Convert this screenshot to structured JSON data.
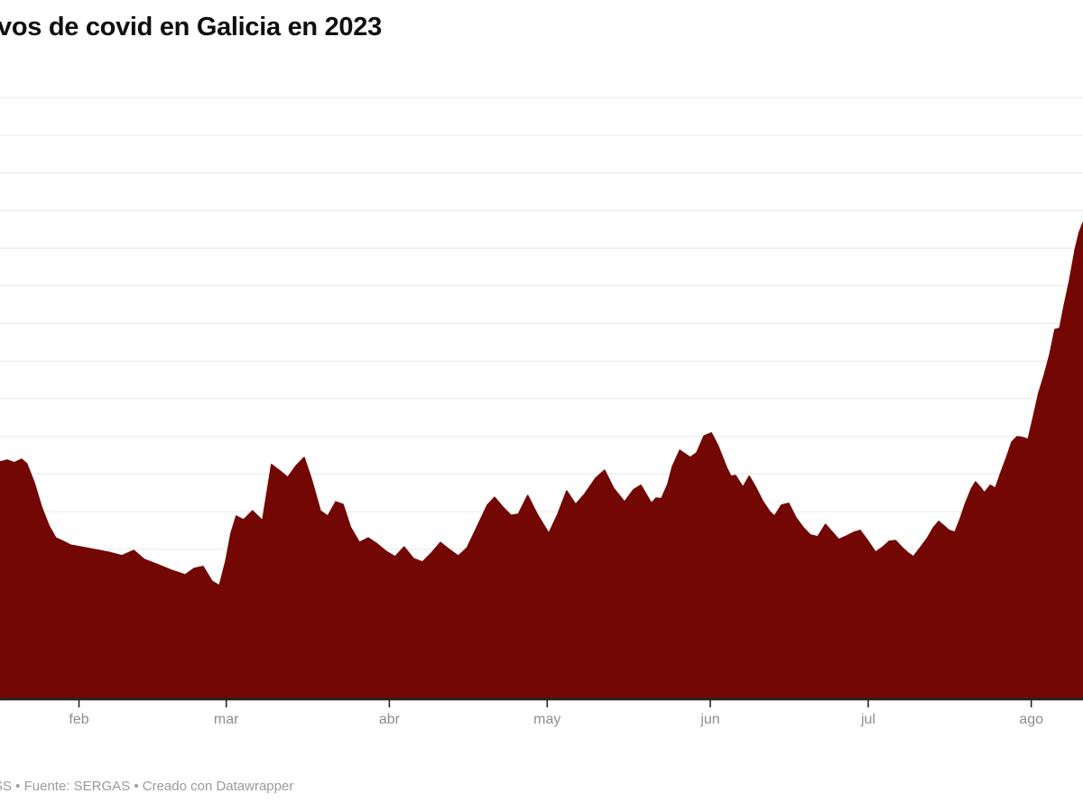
{
  "header": {
    "title_visible_text": "vos de covid en Galicia en 2023"
  },
  "footer": {
    "visible_text": "SS • Fuente: SERGAS • Creado con Datawrapper"
  },
  "colors": {
    "background": "#ffffff",
    "title_text": "#0f0f0f",
    "footer_text": "#9b9b9b",
    "axis_label_text": "#8e8e8e",
    "gridline": "#e8e8e8",
    "baseline": "#242424",
    "tick": "#242424",
    "area_fill": "#730703"
  },
  "chart_data": {
    "type": "area",
    "title": "vos de covid en Galicia en 2023",
    "legend": "none",
    "grid": "horizontal gridlines on, unlabeled (left value labels cropped out of view)",
    "x_axis": {
      "kind": "date",
      "visible_range_days": [
        0,
        205.8
      ],
      "left_edge_date": "2023-01-17",
      "right_edge_date": "2023-08-11",
      "ticks": [
        {
          "label": "feb",
          "day": 15
        },
        {
          "label": "mar",
          "day": 43
        },
        {
          "label": "abr",
          "day": 74
        },
        {
          "label": "may",
          "day": 104
        },
        {
          "label": "jun",
          "day": 135
        },
        {
          "label": "jul",
          "day": 165
        },
        {
          "label": "ago",
          "day": 196
        }
      ]
    },
    "y_axis": {
      "ylim": [
        0,
        1600
      ],
      "gridline_step_estimated_units": 100,
      "gridline_count": 16,
      "tick_labels_visible": false
    },
    "series": [
      {
        "name": "casos de covid",
        "points_day_value": [
          [
            0,
            632
          ],
          [
            1.4,
            637
          ],
          [
            2.7,
            630
          ],
          [
            4.1,
            639
          ],
          [
            5.1,
            627
          ],
          [
            6.5,
            577
          ],
          [
            7.9,
            512
          ],
          [
            9.3,
            462
          ],
          [
            10.6,
            430
          ],
          [
            12,
            421
          ],
          [
            13.4,
            411
          ],
          [
            15.4,
            406
          ],
          [
            18,
            399
          ],
          [
            20.6,
            392
          ],
          [
            23.2,
            383
          ],
          [
            25.4,
            397
          ],
          [
            27.4,
            373
          ],
          [
            30,
            359
          ],
          [
            32.6,
            344
          ],
          [
            35.2,
            332
          ],
          [
            36.9,
            349
          ],
          [
            38.6,
            354
          ],
          [
            40.3,
            315
          ],
          [
            41.7,
            303
          ],
          [
            42.9,
            368
          ],
          [
            43.9,
            442
          ],
          [
            44.9,
            488
          ],
          [
            46.3,
            478
          ],
          [
            48,
            502
          ],
          [
            49.9,
            476
          ],
          [
            51.6,
            625
          ],
          [
            53.2,
            608
          ],
          [
            54.7,
            591
          ],
          [
            56.3,
            622
          ],
          [
            57.8,
            644
          ],
          [
            59.2,
            586
          ],
          [
            60.9,
            502
          ],
          [
            62.3,
            488
          ],
          [
            63.8,
            526
          ],
          [
            65.2,
            519
          ],
          [
            66.6,
            459
          ],
          [
            68.3,
            418
          ],
          [
            70,
            430
          ],
          [
            71.7,
            414
          ],
          [
            73.4,
            394
          ],
          [
            75.1,
            380
          ],
          [
            76.8,
            406
          ],
          [
            78.6,
            375
          ],
          [
            80.3,
            366
          ],
          [
            82,
            390
          ],
          [
            83.7,
            418
          ],
          [
            85.4,
            399
          ],
          [
            87.1,
            382
          ],
          [
            88.8,
            404
          ],
          [
            90.9,
            466
          ],
          [
            92.6,
            517
          ],
          [
            94,
            538
          ],
          [
            95.7,
            510
          ],
          [
            97.1,
            490
          ],
          [
            98.5,
            493
          ],
          [
            100.3,
            543
          ],
          [
            102.1,
            493
          ],
          [
            104.3,
            442
          ],
          [
            106,
            493
          ],
          [
            107.7,
            555
          ],
          [
            109.4,
            519
          ],
          [
            111.1,
            546
          ],
          [
            113.2,
            589
          ],
          [
            114.9,
            610
          ],
          [
            116.6,
            562
          ],
          [
            118.7,
            526
          ],
          [
            120.4,
            558
          ],
          [
            121.8,
            570
          ],
          [
            123.8,
            522
          ],
          [
            124.7,
            536
          ],
          [
            125.7,
            534
          ],
          [
            126.9,
            572
          ],
          [
            127.8,
            620
          ],
          [
            129.2,
            663
          ],
          [
            131.2,
            644
          ],
          [
            132.4,
            656
          ],
          [
            133.8,
            701
          ],
          [
            135.2,
            709
          ],
          [
            136.4,
            677
          ],
          [
            138.1,
            617
          ],
          [
            138.9,
            594
          ],
          [
            139.8,
            596
          ],
          [
            141.2,
            565
          ],
          [
            142.4,
            594
          ],
          [
            143.6,
            565
          ],
          [
            144.9,
            529
          ],
          [
            146.3,
            500
          ],
          [
            147.2,
            488
          ],
          [
            148.5,
            517
          ],
          [
            149.9,
            522
          ],
          [
            151.3,
            483
          ],
          [
            152.7,
            457
          ],
          [
            154,
            438
          ],
          [
            155.4,
            433
          ],
          [
            156.9,
            466
          ],
          [
            158.1,
            447
          ],
          [
            159.4,
            426
          ],
          [
            160.9,
            435
          ],
          [
            162.3,
            445
          ],
          [
            163.5,
            450
          ],
          [
            165,
            421
          ],
          [
            166.4,
            392
          ],
          [
            167.8,
            406
          ],
          [
            169,
            421
          ],
          [
            170.2,
            423
          ],
          [
            171.5,
            404
          ],
          [
            172.6,
            390
          ],
          [
            173.6,
            380
          ],
          [
            175,
            406
          ],
          [
            176.2,
            428
          ],
          [
            177.4,
            457
          ],
          [
            178.4,
            474
          ],
          [
            179.4,
            462
          ],
          [
            180.4,
            450
          ],
          [
            181.5,
            445
          ],
          [
            182.5,
            481
          ],
          [
            183.5,
            522
          ],
          [
            184.6,
            560
          ],
          [
            185.4,
            579
          ],
          [
            186.3,
            565
          ],
          [
            187.1,
            550
          ],
          [
            188.2,
            570
          ],
          [
            189.2,
            562
          ],
          [
            190.2,
            603
          ],
          [
            191.3,
            644
          ],
          [
            192.3,
            685
          ],
          [
            193.3,
            699
          ],
          [
            194.3,
            697
          ],
          [
            195.4,
            692
          ],
          [
            196.4,
            752
          ],
          [
            197.4,
            814
          ],
          [
            198.5,
            865
          ],
          [
            199.5,
            917
          ],
          [
            200.5,
            984
          ],
          [
            201.4,
            987
          ],
          [
            202.2,
            1044
          ],
          [
            203.3,
            1116
          ],
          [
            204.3,
            1195
          ],
          [
            205.1,
            1241
          ],
          [
            205.8,
            1267
          ]
        ]
      }
    ]
  }
}
